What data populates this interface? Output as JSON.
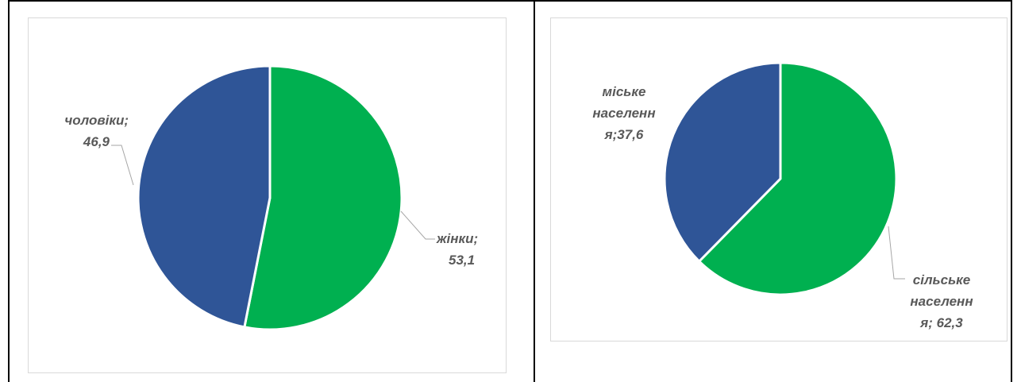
{
  "colors": {
    "green": "#00b050",
    "blue": "#2f5597",
    "label_text": "#595959",
    "leader_line": "#a6a6a6"
  },
  "chart_data": [
    {
      "type": "pie",
      "title": "",
      "slices": [
        {
          "category": "жінки",
          "value": 53.1,
          "color": "#00b050",
          "label_lines": [
            "жінки;",
            "53,1"
          ]
        },
        {
          "category": "чоловіки",
          "value": 46.9,
          "color": "#2f5597",
          "label_lines": [
            "чоловіки;",
            "46,9"
          ]
        }
      ],
      "start_angle_deg": 0,
      "direction": "clockwise",
      "data_labels": "outside with leader lines",
      "legend": "none"
    },
    {
      "type": "pie",
      "title": "",
      "slices": [
        {
          "category": "сільське населення",
          "value": 62.3,
          "color": "#00b050",
          "label_lines": [
            "сільське",
            "населенн",
            "я; 62,3"
          ]
        },
        {
          "category": "міське населення",
          "value": 37.6,
          "color": "#2f5597",
          "label_lines": [
            "міське",
            "населенн",
            "я;37,6"
          ]
        }
      ],
      "start_angle_deg": 0,
      "direction": "clockwise",
      "data_labels": "outside with leader lines",
      "legend": "none"
    }
  ]
}
